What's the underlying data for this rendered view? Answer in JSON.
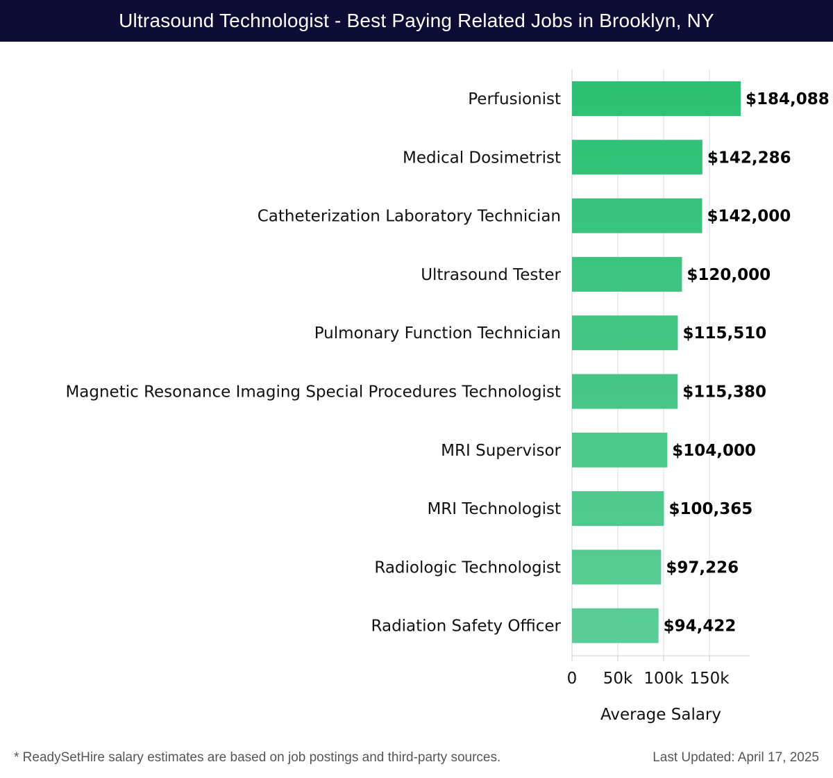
{
  "header": {
    "title": "Ultrasound Technologist - Best Paying Related Jobs in Brooklyn, NY"
  },
  "colors": {
    "header_background": "#0c0c35",
    "bar_top": "#2cbf73",
    "bar_bottom": "#5dcd97",
    "grid": "#dddddd"
  },
  "chart_data": {
    "type": "bar",
    "orientation": "horizontal",
    "categories": [
      "Perfusionist",
      "Medical Dosimetrist",
      "Catheterization Laboratory Technician",
      "Ultrasound Tester",
      "Pulmonary Function Technician",
      "Magnetic Resonance Imaging Special Procedures Technologist",
      "MRI Supervisor",
      "MRI Technologist",
      "Radiologic Technologist",
      "Radiation Safety Officer"
    ],
    "values": [
      184088,
      142286,
      142000,
      120000,
      115510,
      115380,
      104000,
      100365,
      97226,
      94422
    ],
    "value_labels": [
      "$184,088",
      "$142,286",
      "$142,000",
      "$120,000",
      "$115,510",
      "$115,380",
      "$104,000",
      "$100,365",
      "$97,226",
      "$94,422"
    ],
    "xlabel": "Average Salary",
    "ylabel": "",
    "xticks": [
      0,
      50000,
      100000,
      150000
    ],
    "xtick_labels": [
      "0",
      "50k",
      "100k",
      "150k"
    ],
    "xlim": [
      0,
      195000
    ],
    "grid": true
  },
  "footer": {
    "note": "* ReadySetHire salary estimates are based on job postings and third-party sources.",
    "updated": "Last Updated: April 17, 2025"
  }
}
